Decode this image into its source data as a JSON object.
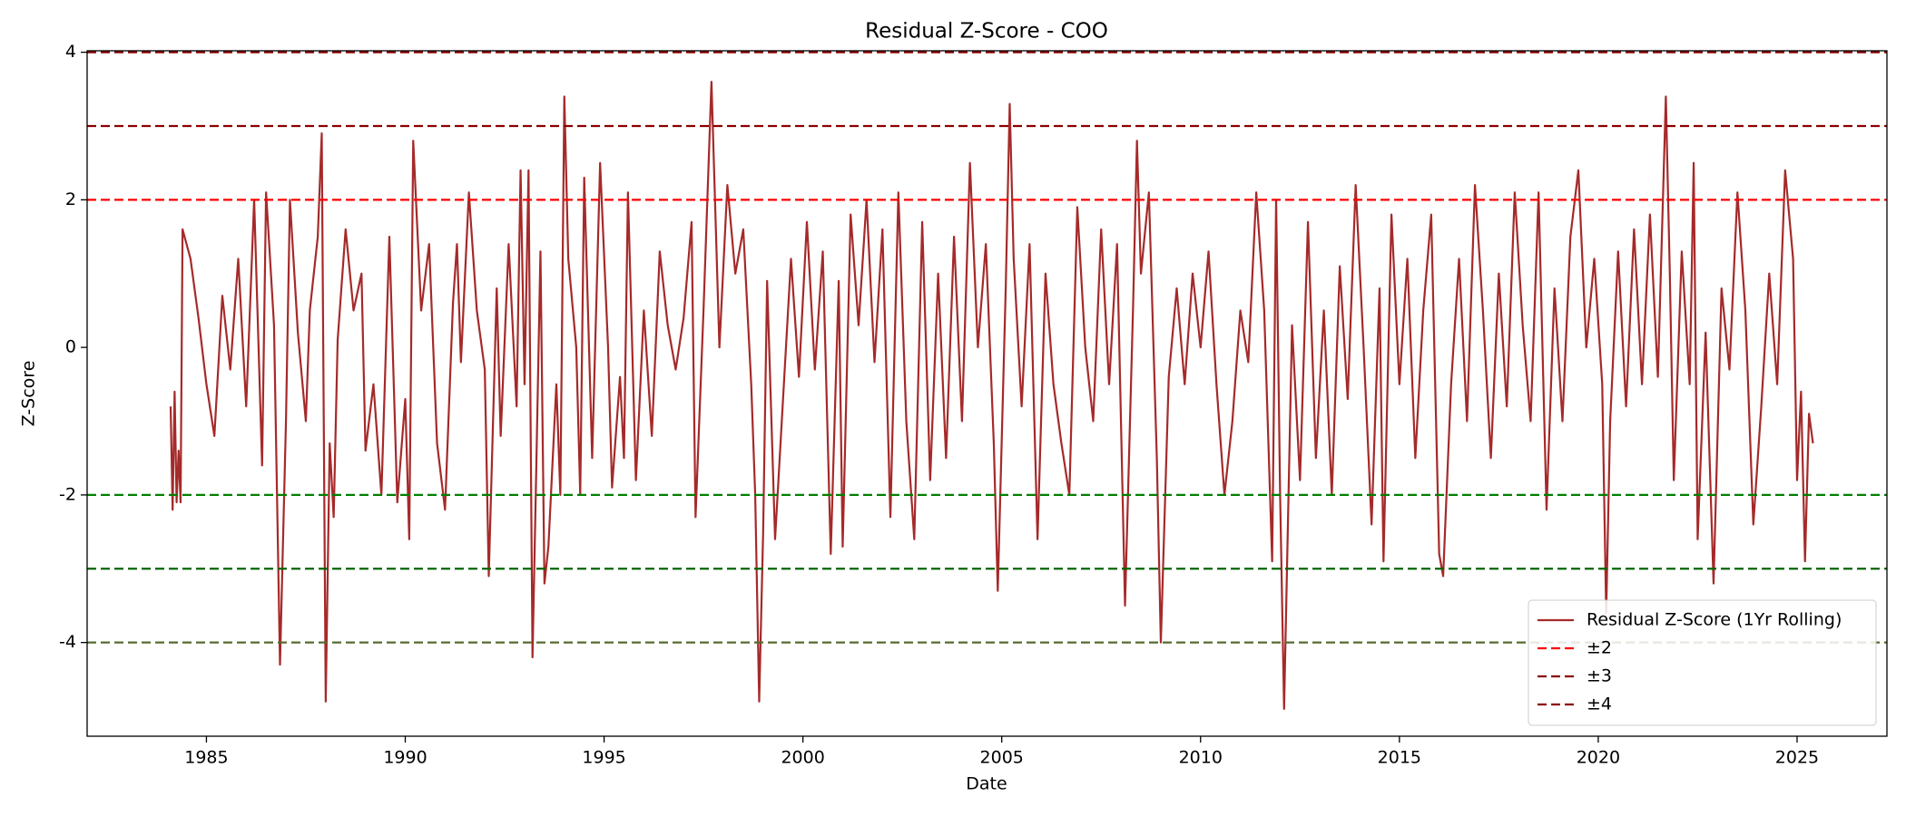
{
  "chart_data": {
    "type": "line",
    "title": "Residual Z-Score - COO",
    "x_label": "Date",
    "y_label": "Z-Score",
    "xlim": [
      1982.0,
      2027.26
    ],
    "xticks": [
      1985,
      1990,
      1995,
      2000,
      2005,
      2010,
      2015,
      2020,
      2025
    ],
    "ylim": [
      -5.27,
      4.02
    ],
    "yticks": [
      -4,
      -2,
      0,
      2,
      4
    ],
    "legend": "lower right",
    "series": [
      {
        "name": "Residual Z-Score (1Yr Rolling)",
        "color": "#a52a2a",
        "x": [
          1984.1,
          1984.15,
          1984.2,
          1984.25,
          1984.3,
          1984.35,
          1984.4,
          1984.6,
          1984.8,
          1985.0,
          1985.2,
          1985.4,
          1985.6,
          1985.8,
          1986.0,
          1986.2,
          1986.4,
          1986.5,
          1986.7,
          1986.85,
          1987.0,
          1987.1,
          1987.3,
          1987.5,
          1987.6,
          1987.8,
          1987.9,
          1988.0,
          1988.1,
          1988.2,
          1988.3,
          1988.5,
          1988.7,
          1988.9,
          1989.0,
          1989.2,
          1989.4,
          1989.6,
          1989.8,
          1990.0,
          1990.1,
          1990.2,
          1990.4,
          1990.6,
          1990.8,
          1991.0,
          1991.2,
          1991.3,
          1991.4,
          1991.6,
          1991.8,
          1992.0,
          1992.1,
          1992.3,
          1992.4,
          1992.6,
          1992.8,
          1992.9,
          1993.0,
          1993.1,
          1993.2,
          1993.3,
          1993.4,
          1993.5,
          1993.6,
          1993.8,
          1993.9,
          1994.0,
          1994.1,
          1994.3,
          1994.4,
          1994.5,
          1994.7,
          1994.9,
          1995.1,
          1995.2,
          1995.4,
          1995.5,
          1995.6,
          1995.8,
          1996.0,
          1996.2,
          1996.4,
          1996.6,
          1996.8,
          1997.0,
          1997.2,
          1997.3,
          1997.5,
          1997.7,
          1997.9,
          1998.1,
          1998.3,
          1998.5,
          1998.7,
          1998.8,
          1998.9,
          1999.0,
          1999.1,
          1999.3,
          1999.5,
          1999.7,
          1999.9,
          2000.1,
          2000.3,
          2000.5,
          2000.7,
          2000.9,
          2001.0,
          2001.2,
          2001.4,
          2001.6,
          2001.8,
          2002.0,
          2002.2,
          2002.4,
          2002.6,
          2002.8,
          2003.0,
          2003.2,
          2003.4,
          2003.6,
          2003.8,
          2004.0,
          2004.2,
          2004.4,
          2004.6,
          2004.8,
          2004.9,
          2005.1,
          2005.2,
          2005.3,
          2005.5,
          2005.7,
          2005.9,
          2006.1,
          2006.3,
          2006.5,
          2006.7,
          2006.9,
          2007.1,
          2007.3,
          2007.5,
          2007.7,
          2007.9,
          2008.1,
          2008.3,
          2008.4,
          2008.5,
          2008.7,
          2008.9,
          2009.0,
          2009.2,
          2009.4,
          2009.6,
          2009.8,
          2010.0,
          2010.2,
          2010.4,
          2010.6,
          2010.8,
          2011.0,
          2011.2,
          2011.4,
          2011.6,
          2011.8,
          2011.9,
          2012.0,
          2012.1,
          2012.3,
          2012.5,
          2012.7,
          2012.9,
          2013.1,
          2013.3,
          2013.5,
          2013.7,
          2013.9,
          2014.1,
          2014.3,
          2014.5,
          2014.6,
          2014.8,
          2015.0,
          2015.2,
          2015.4,
          2015.6,
          2015.8,
          2016.0,
          2016.1,
          2016.3,
          2016.5,
          2016.7,
          2016.9,
          2017.1,
          2017.3,
          2017.5,
          2017.7,
          2017.9,
          2018.1,
          2018.3,
          2018.5,
          2018.7,
          2018.9,
          2019.1,
          2019.3,
          2019.5,
          2019.7,
          2019.9,
          2020.1,
          2020.2,
          2020.3,
          2020.5,
          2020.7,
          2020.9,
          2021.1,
          2021.3,
          2021.5,
          2021.7,
          2021.8,
          2021.9,
          2022.1,
          2022.3,
          2022.4,
          2022.5,
          2022.7,
          2022.9,
          2023.1,
          2023.3,
          2023.5,
          2023.7,
          2023.9,
          2024.1,
          2024.3,
          2024.5,
          2024.7,
          2024.9,
          2025.0,
          2025.1,
          2025.2,
          2025.3,
          2025.4
        ],
        "values": [
          -0.8,
          -2.2,
          -0.6,
          -2.1,
          -1.4,
          -2.1,
          1.6,
          1.2,
          0.4,
          -0.5,
          -1.2,
          0.7,
          -0.3,
          1.2,
          -0.8,
          2.0,
          -1.6,
          2.1,
          0.3,
          -4.3,
          -1.0,
          2.0,
          0.2,
          -1.0,
          0.5,
          1.5,
          2.9,
          -4.8,
          -1.3,
          -2.3,
          0.1,
          1.6,
          0.5,
          1.0,
          -1.4,
          -0.5,
          -2.0,
          1.5,
          -2.1,
          -0.7,
          -2.6,
          2.8,
          0.5,
          1.4,
          -1.3,
          -2.2,
          0.6,
          1.4,
          -0.2,
          2.1,
          0.5,
          -0.3,
          -3.1,
          0.8,
          -1.2,
          1.4,
          -0.8,
          2.4,
          -0.5,
          2.4,
          -4.2,
          -1.5,
          1.3,
          -3.2,
          -2.7,
          -0.5,
          -2.0,
          3.4,
          1.2,
          0.0,
          -2.0,
          2.3,
          -1.5,
          2.5,
          0.0,
          -1.9,
          -0.4,
          -1.5,
          2.1,
          -1.8,
          0.5,
          -1.2,
          1.3,
          0.3,
          -0.3,
          0.4,
          1.7,
          -2.3,
          0.5,
          3.6,
          0.0,
          2.2,
          1.0,
          1.6,
          -0.5,
          -2.0,
          -4.8,
          -2.5,
          0.9,
          -2.6,
          -0.7,
          1.2,
          -0.4,
          1.7,
          -0.3,
          1.3,
          -2.8,
          0.9,
          -2.7,
          1.8,
          0.3,
          2.0,
          -0.2,
          1.6,
          -2.3,
          2.1,
          -1.0,
          -2.6,
          1.7,
          -1.8,
          1.0,
          -1.5,
          1.5,
          -1.0,
          2.5,
          0.0,
          1.4,
          -1.3,
          -3.3,
          0.8,
          3.3,
          1.2,
          -0.8,
          1.4,
          -2.6,
          1.0,
          -0.5,
          -1.3,
          -2.0,
          1.9,
          0.0,
          -1.0,
          1.6,
          -0.5,
          1.4,
          -3.5,
          0.5,
          2.8,
          1.0,
          2.1,
          -1.5,
          -4.0,
          -0.4,
          0.8,
          -0.5,
          1.0,
          0.0,
          1.3,
          -0.5,
          -2.0,
          -1.0,
          0.5,
          -0.2,
          2.1,
          0.5,
          -2.9,
          2.0,
          -2.0,
          -4.9,
          0.3,
          -1.8,
          1.7,
          -1.5,
          0.5,
          -2.0,
          1.1,
          -0.7,
          2.2,
          0.0,
          -2.4,
          0.8,
          -2.9,
          1.8,
          -0.5,
          1.2,
          -1.5,
          0.5,
          1.8,
          -2.8,
          -3.1,
          -0.5,
          1.2,
          -1.0,
          2.2,
          0.5,
          -1.5,
          1.0,
          -0.8,
          2.1,
          0.3,
          -1.0,
          2.1,
          -2.2,
          0.8,
          -1.0,
          1.5,
          2.4,
          0.0,
          1.2,
          -0.5,
          -3.6,
          -1.0,
          1.3,
          -0.8,
          1.6,
          -0.5,
          1.8,
          -0.4,
          3.4,
          1.0,
          -1.8,
          1.3,
          -0.5,
          2.5,
          -2.6,
          0.2,
          -3.2,
          0.8,
          -0.3,
          2.1,
          0.5,
          -2.4,
          -0.8,
          1.0,
          -0.5,
          2.4,
          1.2,
          -1.8,
          -0.6,
          -2.9,
          -0.9,
          -1.3
        ]
      }
    ],
    "reference_lines": [
      {
        "name": "±2",
        "levels": [
          2,
          -2
        ],
        "colors": [
          "#ff0000",
          "#008000"
        ]
      },
      {
        "name": "±3",
        "levels": [
          3,
          -3
        ],
        "colors": [
          "#8b0000",
          "#006400"
        ]
      },
      {
        "name": "±4",
        "levels": [
          4,
          -4
        ],
        "colors": [
          "#8b0000",
          "#556b2f"
        ]
      }
    ]
  }
}
